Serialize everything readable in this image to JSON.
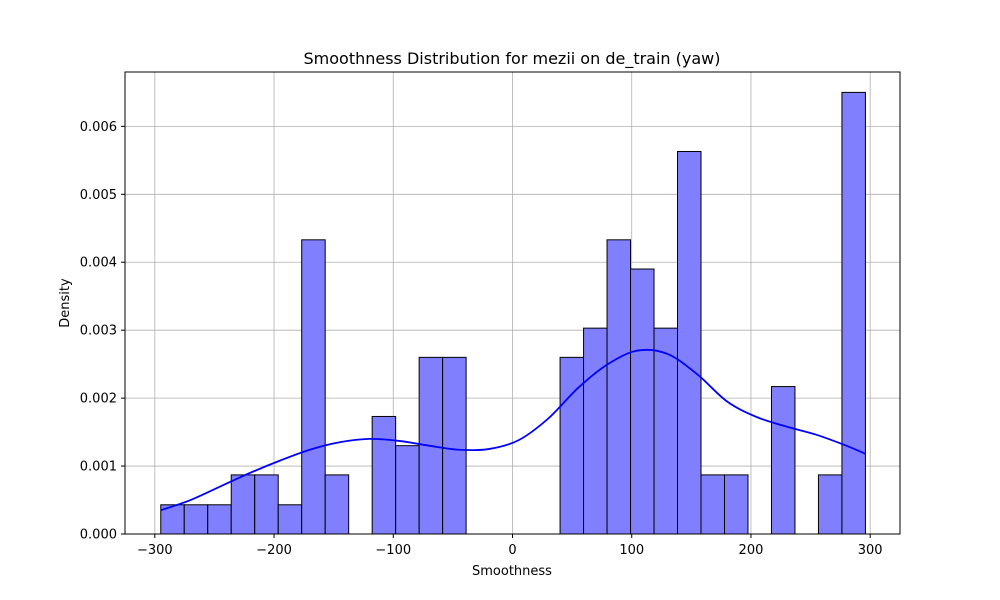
{
  "chart_data": {
    "type": "bar",
    "title": "Smoothness Distribution for mezii on de_train (yaw)",
    "xlabel": "Smoothness",
    "ylabel": "Density",
    "xlim": [
      -325,
      325
    ],
    "ylim": [
      0,
      0.0068
    ],
    "grid": true,
    "bar_color": "#8080ff",
    "bar_edge_color": "#000000",
    "kde_color": "#0000ff",
    "x_ticks": [
      -300,
      -200,
      -100,
      0,
      100,
      200,
      300
    ],
    "x_tick_labels": [
      "−300",
      "−200",
      "−100",
      "0",
      "100",
      "200",
      "300"
    ],
    "y_ticks": [
      0,
      0.001,
      0.002,
      0.003,
      0.004,
      0.005,
      0.006
    ],
    "y_tick_labels": [
      "0.000",
      "0.001",
      "0.002",
      "0.003",
      "0.004",
      "0.005",
      "0.006"
    ],
    "bins": {
      "edges": [
        -295,
        -275.3,
        -255.6,
        -235.9,
        -216.2,
        -196.5,
        -176.8,
        -157.1,
        -137.4,
        -117.7,
        -98.0,
        -78.3,
        -58.6,
        -38.9,
        -19.2,
        0.5,
        20.2,
        39.9,
        59.6,
        79.3,
        99.0,
        118.7,
        138.4,
        158.1,
        177.8,
        197.5,
        217.2,
        236.9,
        256.6,
        276.3,
        296.0
      ],
      "values": [
        0.00043,
        0.00043,
        0.00043,
        0.00087,
        0.00087,
        0.00043,
        0.00433,
        0.00087,
        0,
        0.00173,
        0.0013,
        0.0026,
        0.0026,
        0,
        0,
        0,
        0,
        0.0026,
        0.00303,
        0.00433,
        0.0039,
        0.00303,
        0.00563,
        0.00087,
        0.00087,
        0,
        0.00217,
        0,
        0.00087,
        0.0065
      ]
    },
    "kde": {
      "x": [
        -295,
        -270,
        -245,
        -220,
        -195,
        -170,
        -145,
        -120,
        -95,
        -70,
        -45,
        -20,
        5,
        30,
        55,
        80,
        105,
        130,
        155,
        180,
        205,
        230,
        255,
        280,
        296
      ],
      "y": [
        0.00035,
        0.0005,
        0.0007,
        0.0009,
        0.00108,
        0.00124,
        0.00135,
        0.0014,
        0.00137,
        0.0013,
        0.00124,
        0.00125,
        0.00138,
        0.0017,
        0.00215,
        0.0025,
        0.0027,
        0.00265,
        0.00235,
        0.00195,
        0.00172,
        0.00158,
        0.00146,
        0.0013,
        0.00118
      ]
    }
  }
}
